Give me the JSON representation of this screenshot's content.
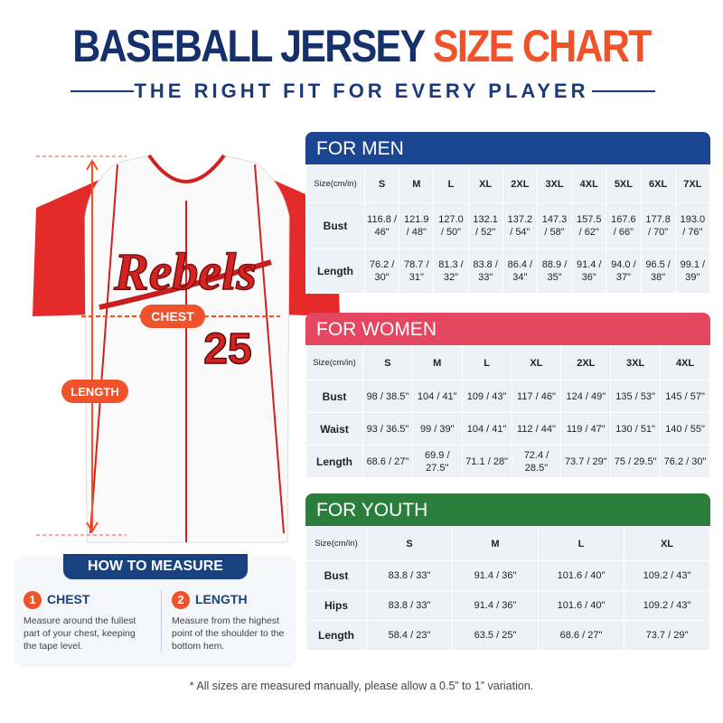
{
  "header": {
    "title_main": "BASEBALL JERSEY",
    "title_accent": "SIZE CHART",
    "subtitle": "THE RIGHT FIT FOR EVERY PLAYER"
  },
  "jersey": {
    "team": "Rebels",
    "number": "25",
    "chest_label": "CHEST",
    "length_label": "LENGTH"
  },
  "how_to": {
    "title": "HOW TO MEASURE",
    "steps": [
      {
        "number": "1",
        "title": "CHEST",
        "text": "Measure around the fullest part of your chest, keeping the tape level."
      },
      {
        "number": "2",
        "title": "LENGTH",
        "text": "Measure from the highest point of the shoulder to the bottom hem."
      }
    ]
  },
  "tables": [
    {
      "title": "FOR MEN",
      "header": [
        "Size(cm/in)",
        "S",
        "M",
        "L",
        "XL",
        "2XL",
        "3XL",
        "4XL",
        "5XL",
        "6XL",
        "7XL"
      ],
      "rows": [
        [
          "Bust",
          "116.8 / 46\"",
          "121.9 / 48\"",
          "127.0 / 50\"",
          "132.1 / 52\"",
          "137.2 / 54\"",
          "147.3 / 58\"",
          "157.5 / 62\"",
          "167.6 / 66\"",
          "177.8 / 70\"",
          "193.0 / 76\""
        ],
        [
          "Length",
          "76.2 / 30\"",
          "78.7 / 31\"",
          "81.3 / 32\"",
          "83.8 / 33\"",
          "86.4 / 34\"",
          "88.9 / 35\"",
          "91.4 / 36\"",
          "94.0 / 37\"",
          "96.5 / 38\"",
          "99.1 / 39\""
        ]
      ]
    },
    {
      "title": "FOR WOMEN",
      "header": [
        "Size(cm/in)",
        "S",
        "M",
        "L",
        "XL",
        "2XL",
        "3XL",
        "4XL"
      ],
      "rows": [
        [
          "Bust",
          "98 / 38.5\"",
          "104 / 41\"",
          "109 / 43\"",
          "117 / 46\"",
          "124 / 49\"",
          "135 / 53\"",
          "145 / 57\""
        ],
        [
          "Waist",
          "93 / 36.5\"",
          "99 / 39\"",
          "104 / 41\"",
          "112 / 44\"",
          "119 / 47\"",
          "130 / 51\"",
          "140 / 55\""
        ],
        [
          "Length",
          "68.6 / 27\"",
          "69.9 / 27.5\"",
          "71.1 / 28\"",
          "72.4 / 28.5\"",
          "73.7 / 29\"",
          "75 / 29.5\"",
          "76.2 / 30\""
        ]
      ]
    },
    {
      "title": "FOR YOUTH",
      "header": [
        "Size(cm/in)",
        "S",
        "M",
        "L",
        "XL"
      ],
      "rows": [
        [
          "Bust",
          "83.8 / 33\"",
          "91.4 / 36\"",
          "101.6 / 40\"",
          "109.2 / 43\""
        ],
        [
          "Hips",
          "83.8 / 33\"",
          "91.4 / 36\"",
          "101.6 / 40\"",
          "109.2 / 43\""
        ],
        [
          "Length",
          "58.4 / 23\"",
          "63.5 / 25\"",
          "68.6 / 27\"",
          "73.7 / 29\""
        ]
      ]
    }
  ],
  "footnote": "* All sizes are measured manually, please allow a 0.5” to 1” variation."
}
